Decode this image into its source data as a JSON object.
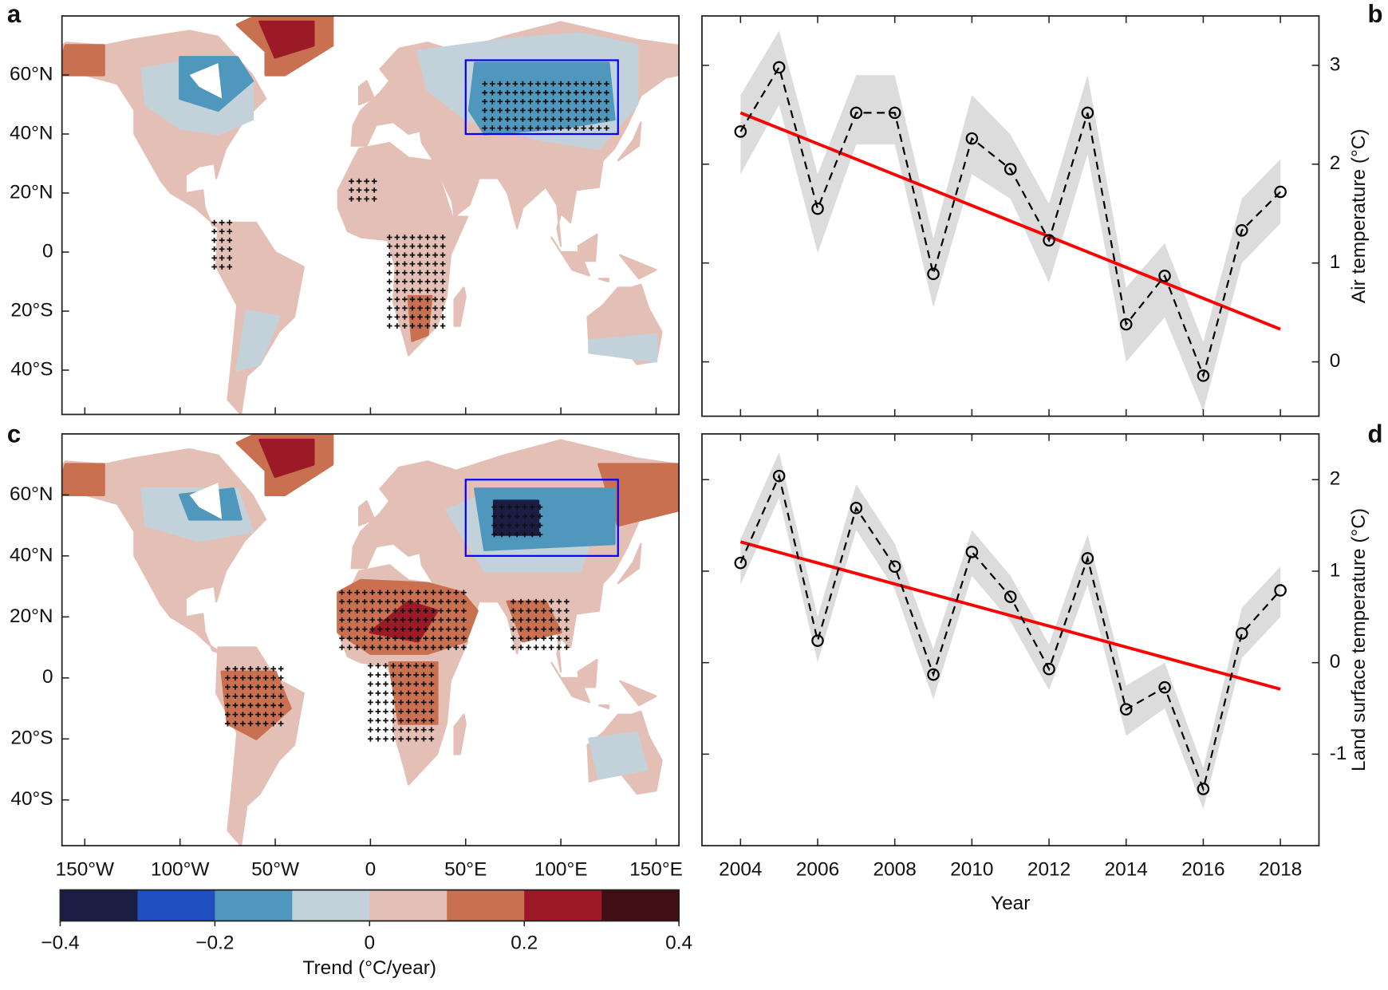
{
  "chart_data": [
    {
      "type": "map",
      "panel": "a",
      "xlim": [
        -162,
        162
      ],
      "ylim": [
        -55,
        80
      ],
      "xticks": [
        -150,
        -100,
        -50,
        0,
        50,
        100,
        150
      ],
      "yticks": [
        {
          "value": 60,
          "label": "60°N"
        },
        {
          "value": 40,
          "label": "40°N"
        },
        {
          "value": 20,
          "label": "20°N"
        },
        0,
        {
          "value": -20,
          "label": "20°S"
        },
        {
          "value": -40,
          "label": "40°S"
        }
      ],
      "region": {
        "lon": [
          50,
          130
        ],
        "lat": [
          40,
          65
        ],
        "color": "#0000ff"
      }
    },
    {
      "type": "line",
      "panel": "b",
      "x": [
        2004,
        2005,
        2006,
        2007,
        2008,
        2009,
        2010,
        2011,
        2012,
        2013,
        2014,
        2015,
        2016,
        2017,
        2018
      ],
      "values": [
        2.33,
        2.98,
        1.55,
        2.52,
        2.52,
        0.89,
        2.26,
        1.95,
        1.23,
        2.52,
        0.38,
        0.87,
        -0.14,
        1.33,
        1.72
      ],
      "band_upper": [
        2.7,
        3.35,
        1.9,
        2.9,
        2.9,
        1.25,
        2.7,
        2.3,
        1.6,
        2.9,
        0.75,
        1.2,
        0.2,
        1.65,
        2.05
      ],
      "band_lower": [
        1.9,
        2.6,
        1.1,
        2.2,
        2.2,
        0.55,
        1.9,
        1.65,
        0.8,
        2.1,
        0.0,
        0.45,
        -0.5,
        1.0,
        1.4
      ],
      "trend": {
        "x": [
          2004,
          2018
        ],
        "values": [
          2.52,
          0.33
        ],
        "color": "#ff0000"
      },
      "color": "#000000",
      "band_color": "#dcdcdc",
      "ylabel": "Air temperature (°C)",
      "xlim": [
        2003,
        2019
      ],
      "ylim": [
        -0.55,
        3.5
      ],
      "xticks": [
        2004,
        2006,
        2008,
        2010,
        2012,
        2014,
        2016,
        2018
      ],
      "yticks": [
        0,
        1,
        2,
        3
      ]
    },
    {
      "type": "map",
      "panel": "c",
      "xlim": [
        -162,
        162
      ],
      "ylim": [
        -55,
        80
      ],
      "xticks": [
        {
          "value": -150,
          "label": "150°W"
        },
        {
          "value": -100,
          "label": "100°W"
        },
        {
          "value": -50,
          "label": "50°W"
        },
        0,
        {
          "value": 50,
          "label": "50°E"
        },
        {
          "value": 100,
          "label": "100°E"
        },
        {
          "value": 150,
          "label": "150°E"
        }
      ],
      "yticks": [
        {
          "value": 60,
          "label": "60°N"
        },
        {
          "value": 40,
          "label": "40°N"
        },
        {
          "value": 20,
          "label": "20°N"
        },
        0,
        {
          "value": -20,
          "label": "20°S"
        },
        {
          "value": -40,
          "label": "40°S"
        }
      ],
      "region": {
        "lon": [
          50,
          130
        ],
        "lat": [
          40,
          65
        ],
        "color": "#0000ff"
      }
    },
    {
      "type": "line",
      "panel": "d",
      "x": [
        2004,
        2005,
        2006,
        2007,
        2008,
        2009,
        2010,
        2011,
        2012,
        2013,
        2014,
        2015,
        2016,
        2017,
        2018
      ],
      "values": [
        1.09,
        2.04,
        0.24,
        1.69,
        1.05,
        -0.13,
        1.21,
        0.72,
        -0.07,
        1.14,
        -0.51,
        -0.27,
        -1.38,
        0.32,
        0.79
      ],
      "band_upper": [
        1.35,
        2.3,
        0.5,
        1.95,
        1.3,
        0.15,
        1.45,
        0.95,
        0.2,
        1.4,
        -0.25,
        0.0,
        -1.15,
        0.6,
        1.05
      ],
      "band_lower": [
        0.85,
        1.8,
        0.0,
        1.45,
        0.8,
        -0.4,
        0.95,
        0.45,
        -0.3,
        0.85,
        -0.8,
        -0.5,
        -1.6,
        0.05,
        0.5
      ],
      "trend": {
        "x": [
          2004,
          2018
        ],
        "values": [
          1.32,
          -0.29
        ],
        "color": "#ff0000"
      },
      "color": "#000000",
      "band_color": "#dcdcdc",
      "ylabel": "Land surface temperature (°C)",
      "xlabel": "Year",
      "xlim": [
        2003,
        2019
      ],
      "ylim": [
        -2,
        2.5
      ],
      "xticks": [
        2004,
        2006,
        2008,
        2010,
        2012,
        2014,
        2016,
        2018
      ],
      "yticks": [
        -1,
        0,
        1,
        2
      ]
    }
  ],
  "colorbar": {
    "label": "Trend (°C/year)",
    "lim": [
      -0.4,
      0.4
    ],
    "colors": [
      "#1c1d45",
      "#1f4fc0",
      "#4f97bd",
      "#c3d2da",
      "#e4bfb5",
      "#c8704f",
      "#9c1a27",
      "#420e16"
    ],
    "ticks": [
      {
        "value": -0.4,
        "label": "−0.4"
      },
      {
        "value": -0.2,
        "label": "−0.2"
      },
      0,
      0.2,
      0.4
    ]
  }
}
